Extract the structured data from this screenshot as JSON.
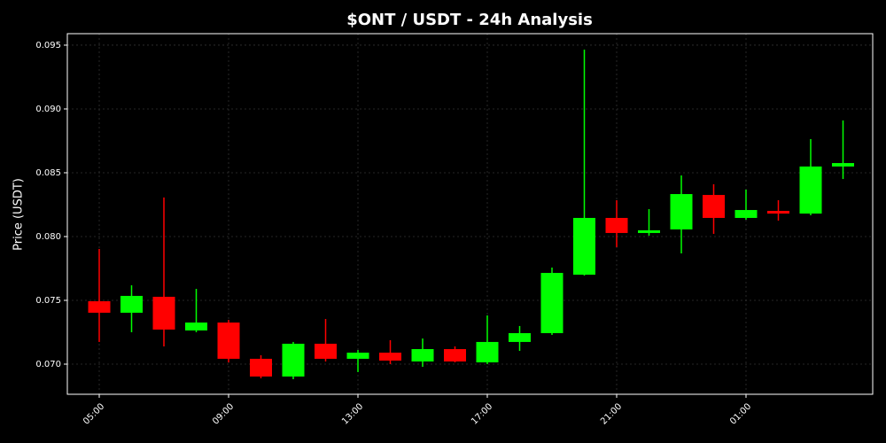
{
  "chart_data": {
    "type": "candlestick",
    "title": "$ONT / USDT - 24h Analysis",
    "y_label": "Price (USDT)",
    "categories": [
      "05:00",
      null,
      null,
      null,
      "09:00",
      null,
      null,
      null,
      "13:00",
      null,
      null,
      null,
      "17:00",
      null,
      null,
      null,
      "21:00",
      null,
      null,
      null,
      "01:00",
      null,
      null,
      null
    ],
    "open": [
      0.07493,
      0.07403,
      0.07528,
      0.07264,
      0.07326,
      0.07042,
      0.06903,
      0.0716,
      0.07042,
      0.0709,
      0.07021,
      0.07118,
      0.07014,
      0.07174,
      0.07243,
      0.07701,
      0.08146,
      0.08028,
      0.08056,
      0.08326,
      0.08146,
      0.08201,
      0.0818,
      0.08549
    ],
    "high": [
      0.07903,
      0.07618,
      0.08306,
      0.0759,
      0.07347,
      0.0707,
      0.07174,
      0.07354,
      0.07111,
      0.07188,
      0.07201,
      0.07139,
      0.07382,
      0.07299,
      0.07757,
      0.09465,
      0.08285,
      0.08215,
      0.08479,
      0.0841,
      0.08368,
      0.08285,
      0.08764,
      0.0891
    ],
    "low": [
      0.07174,
      0.0725,
      0.07139,
      0.0725,
      0.07014,
      0.06889,
      0.06882,
      0.07021,
      0.06938,
      0.07,
      0.06979,
      0.07014,
      0.07,
      0.07104,
      0.07229,
      0.07694,
      0.07917,
      0.08007,
      0.07868,
      0.08021,
      0.08132,
      0.08125,
      0.08167,
      0.08451
    ],
    "close": [
      0.07403,
      0.07535,
      0.07271,
      0.07326,
      0.07042,
      0.06903,
      0.0716,
      0.07042,
      0.0709,
      0.07028,
      0.07118,
      0.07021,
      0.07174,
      0.07243,
      0.07715,
      0.08146,
      0.08028,
      0.08049,
      0.08333,
      0.08146,
      0.08208,
      0.0818,
      0.08549,
      0.08576
    ],
    "up_color": "#00ff00",
    "down_color": "#ff0000",
    "ylim": [
      0.06764,
      0.0959
    ],
    "yticks": [
      {
        "value": 0.07,
        "label": "0.070"
      },
      0.075,
      {
        "value": 0.08,
        "label": "0.080"
      },
      0.085,
      {
        "value": 0.09,
        "label": "0.090"
      },
      0.095
    ],
    "grid": true
  }
}
